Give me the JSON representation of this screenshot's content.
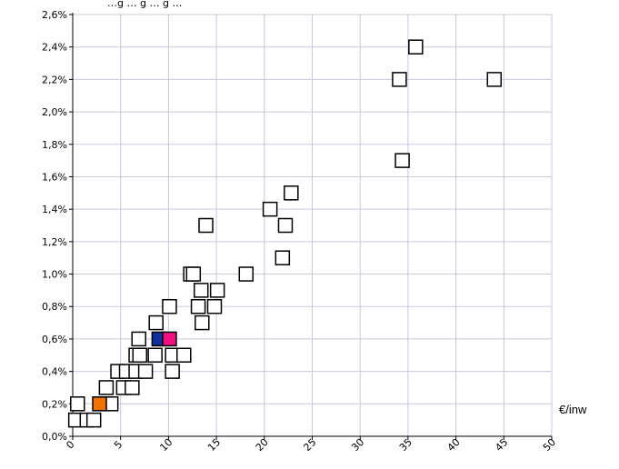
{
  "chart_data": {
    "type": "scatter",
    "title": "…g … g … g …",
    "xlabel": "€/inw",
    "ylabel": "",
    "xlim": [
      0,
      50
    ],
    "ylim": [
      0,
      2.6
    ],
    "x_ticks": [
      0,
      5,
      10,
      15,
      20,
      25,
      30,
      35,
      40,
      45,
      50
    ],
    "y_ticks": [
      0,
      0.2,
      0.4,
      0.6,
      0.8,
      1.0,
      1.2,
      1.4,
      1.6,
      1.8,
      2.0,
      2.2,
      2.4,
      2.6
    ],
    "y_tick_labels": [
      "0,0%",
      "0,2%",
      "0,4%",
      "0,6%",
      "0,8%",
      "1,0%",
      "1,2%",
      "1,4%",
      "1,6%",
      "1,8%",
      "2,0%",
      "2,2%",
      "2,4%",
      "2,6%"
    ],
    "grid": true,
    "marker": "square",
    "highlight_colors": {
      "orange": "#f07000",
      "blue": "#1030a0",
      "magenta": "#f0107f"
    },
    "series": [
      {
        "points": [
          {
            "x": 0.3,
            "y": 0.1
          },
          {
            "x": 0.5,
            "y": 0.2
          },
          {
            "x": 1.5,
            "y": 0.1
          },
          {
            "x": 2.2,
            "y": 0.1
          },
          {
            "x": 3.2,
            "y": 0.2
          },
          {
            "x": 3.5,
            "y": 0.3
          },
          {
            "x": 4.0,
            "y": 0.2
          },
          {
            "x": 4.7,
            "y": 0.4
          },
          {
            "x": 5.3,
            "y": 0.3
          },
          {
            "x": 5.6,
            "y": 0.4
          },
          {
            "x": 6.2,
            "y": 0.3
          },
          {
            "x": 6.6,
            "y": 0.4
          },
          {
            "x": 6.6,
            "y": 0.5
          },
          {
            "x": 6.9,
            "y": 0.6
          },
          {
            "x": 7.0,
            "y": 0.5
          },
          {
            "x": 7.6,
            "y": 0.4
          },
          {
            "x": 8.6,
            "y": 0.5
          },
          {
            "x": 8.7,
            "y": 0.7
          },
          {
            "x": 10.1,
            "y": 0.8
          },
          {
            "x": 10.4,
            "y": 0.5
          },
          {
            "x": 10.4,
            "y": 0.4
          },
          {
            "x": 11.6,
            "y": 0.5
          },
          {
            "x": 12.3,
            "y": 1.0
          },
          {
            "x": 12.6,
            "y": 1.0
          },
          {
            "x": 13.1,
            "y": 0.8
          },
          {
            "x": 13.4,
            "y": 0.9
          },
          {
            "x": 13.5,
            "y": 0.7
          },
          {
            "x": 13.9,
            "y": 1.3
          },
          {
            "x": 14.8,
            "y": 0.8
          },
          {
            "x": 15.1,
            "y": 0.9
          },
          {
            "x": 18.1,
            "y": 1.0
          },
          {
            "x": 20.6,
            "y": 1.4
          },
          {
            "x": 21.9,
            "y": 1.1
          },
          {
            "x": 22.2,
            "y": 1.3
          },
          {
            "x": 22.8,
            "y": 1.5
          },
          {
            "x": 34.1,
            "y": 2.2
          },
          {
            "x": 34.4,
            "y": 1.7
          },
          {
            "x": 35.8,
            "y": 2.4
          },
          {
            "x": 44.0,
            "y": 2.2
          }
        ]
      },
      {
        "color": "orange",
        "points": [
          {
            "x": 2.8,
            "y": 0.2
          }
        ]
      },
      {
        "color": "blue",
        "points": [
          {
            "x": 9.0,
            "y": 0.6
          }
        ]
      },
      {
        "color": "magenta",
        "points": [
          {
            "x": 10.1,
            "y": 0.6
          }
        ]
      }
    ]
  }
}
